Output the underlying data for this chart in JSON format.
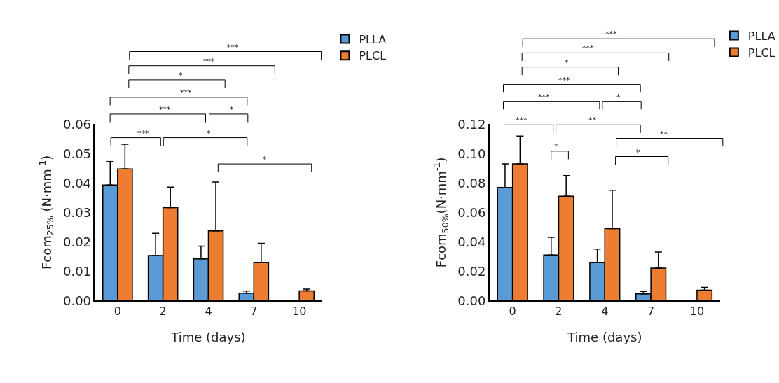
{
  "chart_data": [
    {
      "type": "bar",
      "ylabel": "Fcom$_{25%}$ (N·mm$^{-1}$)",
      "xlabel": "Time (days)",
      "categories": [
        "0",
        "2",
        "4",
        "7",
        "10"
      ],
      "series": [
        {
          "name": "PLLA",
          "color": "#5b9bd5",
          "values": [
            0.0393,
            0.0153,
            0.0142,
            0.0025,
            null
          ],
          "errors": [
            0.008,
            0.0076,
            0.0043,
            0.0007,
            null
          ]
        },
        {
          "name": "PLCL",
          "color": "#ed7d31",
          "values": [
            0.0448,
            0.0316,
            0.0237,
            0.013,
            0.0033
          ],
          "errors": [
            0.0084,
            0.007,
            0.0166,
            0.0065,
            0.0006
          ]
        }
      ],
      "ylim": [
        0,
        0.06
      ],
      "yticks": [
        {
          "value": 0,
          "label": "0.00"
        },
        {
          "value": 0.01,
          "label": "0.01"
        },
        {
          "value": 0.02,
          "label": "0.02"
        },
        {
          "value": 0.03,
          "label": "0.03"
        },
        {
          "value": 0.04,
          "label": "0.04"
        },
        {
          "value": 0.05,
          "label": "0.05"
        },
        {
          "value": 0.06,
          "label": "0.06"
        }
      ],
      "legend": "top right",
      "annotations": [
        "***",
        "***",
        "*",
        "***",
        "***",
        "*",
        "***",
        "*",
        "*"
      ]
    },
    {
      "type": "bar",
      "ylabel": "Fcom$_{50%}$(N·mm$^{-1}$)",
      "xlabel": "Time (days)",
      "categories": [
        "0",
        "2",
        "4",
        "7",
        "10"
      ],
      "series": [
        {
          "name": "PLLA",
          "color": "#5b9bd5",
          "values": [
            0.077,
            0.031,
            0.026,
            0.0045,
            null
          ],
          "errors": [
            0.016,
            0.012,
            0.009,
            0.0017,
            null
          ]
        },
        {
          "name": "PLCL",
          "color": "#ed7d31",
          "values": [
            0.093,
            0.071,
            0.049,
            0.022,
            0.007
          ],
          "errors": [
            0.019,
            0.014,
            0.026,
            0.011,
            0.002
          ]
        }
      ],
      "ylim": [
        0,
        0.12
      ],
      "yticks": [
        {
          "value": 0,
          "label": "0.00"
        },
        {
          "value": 0.02,
          "label": "0.02"
        },
        {
          "value": 0.04,
          "label": "0.04"
        },
        {
          "value": 0.06,
          "label": "0.06"
        },
        {
          "value": 0.08,
          "label": "0.08"
        },
        {
          "value": 0.1,
          "label": "0.10"
        },
        {
          "value": 0.12,
          "label": "0.12"
        }
      ],
      "legend": "top right",
      "annotations": [
        "***",
        "***",
        "*",
        "***",
        "***",
        "*",
        "***",
        "**",
        "**",
        "*",
        "*"
      ]
    }
  ]
}
